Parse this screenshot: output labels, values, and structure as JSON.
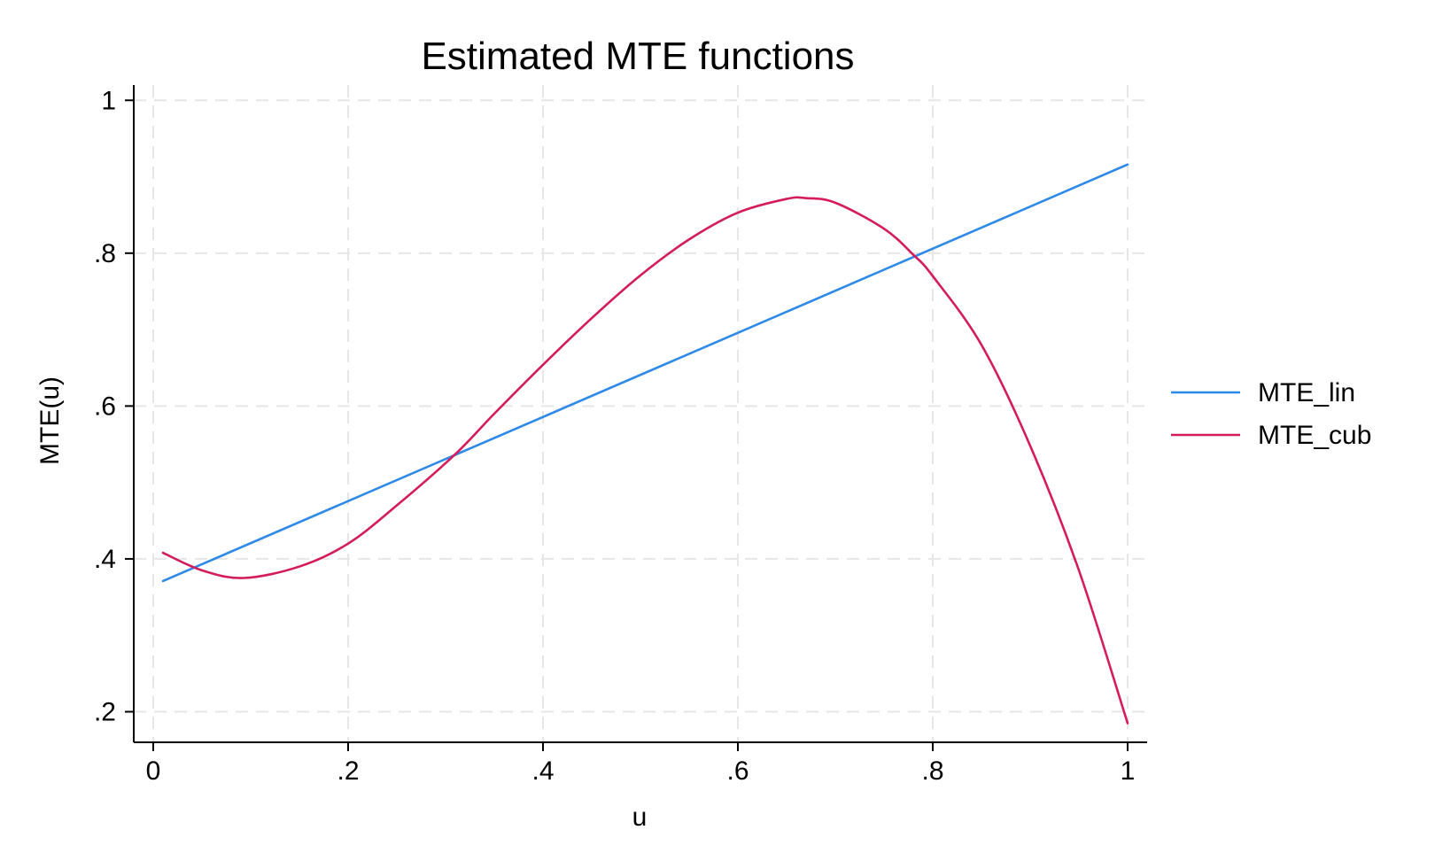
{
  "chart_data": {
    "type": "line",
    "title": "Estimated MTE functions",
    "xlabel": "u",
    "ylabel": "MTE(u)",
    "xlim": [
      -0.02,
      1.02
    ],
    "ylim": [
      0.16,
      1.02
    ],
    "x_ticks": [
      {
        "value": 0,
        "label": "0"
      },
      {
        "value": 0.2,
        "label": ".2"
      },
      {
        "value": 0.4,
        "label": ".4"
      },
      {
        "value": 0.6,
        "label": ".6"
      },
      {
        "value": 0.8,
        "label": ".8"
      },
      {
        "value": 1,
        "label": "1"
      }
    ],
    "y_ticks": [
      {
        "value": 0.2,
        "label": ".2"
      },
      {
        "value": 0.4,
        "label": ".4"
      },
      {
        "value": 0.6,
        "label": ".6"
      },
      {
        "value": 0.8,
        "label": ".8"
      },
      {
        "value": 1,
        "label": "1"
      }
    ],
    "grid": true,
    "legend_position": "right",
    "series": [
      {
        "name": "MTE_lin",
        "color": "#2d8ae8",
        "x": [
          0.01,
          1.0
        ],
        "y": [
          0.371,
          0.916
        ]
      },
      {
        "name": "MTE_cub",
        "color": "#d41c5c",
        "x": [
          0.01,
          0.05,
          0.093,
          0.15,
          0.2,
          0.25,
          0.31,
          0.35,
          0.4,
          0.45,
          0.5,
          0.55,
          0.6,
          0.65,
          0.67,
          0.7,
          0.75,
          0.78,
          0.8,
          0.85,
          0.9,
          0.95,
          1.0
        ],
        "y": [
          0.408,
          0.385,
          0.375,
          0.39,
          0.42,
          0.47,
          0.537,
          0.59,
          0.654,
          0.715,
          0.771,
          0.818,
          0.853,
          0.871,
          0.872,
          0.866,
          0.832,
          0.798,
          0.77,
          0.68,
          0.548,
          0.385,
          0.185
        ]
      }
    ]
  }
}
